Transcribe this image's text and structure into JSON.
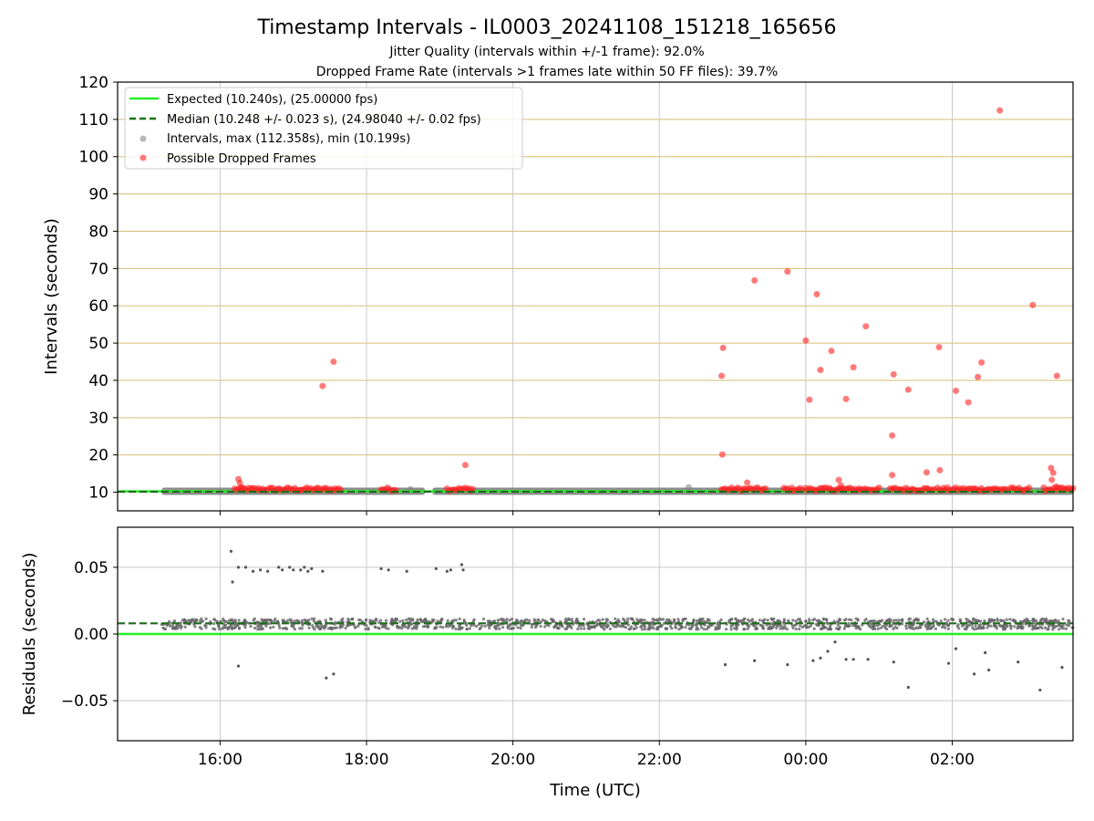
{
  "chart_data": {
    "title": "Timestamp Intervals - IL0003_20241108_151218_165656",
    "subtitle_1": "Jitter Quality (intervals within +/-1 frame): 92.0%",
    "subtitle_2": "Dropped Frame Rate (intervals >1 frames late within 50 FF files): 39.7%",
    "xlabel": "Time (UTC)",
    "x_ticks": [
      "16:00",
      "18:00",
      "20:00",
      "22:00",
      "00:00",
      "02:00"
    ],
    "x_tick_hours": [
      16,
      18,
      20,
      22,
      24,
      26
    ],
    "x_range_hours": [
      14.6,
      27.65
    ],
    "panels": [
      {
        "id": "intervals",
        "type": "scatter",
        "ylabel": "Intervals (seconds)",
        "ylim": [
          5,
          120
        ],
        "y_ticks": [
          10,
          20,
          30,
          40,
          50,
          60,
          70,
          80,
          90,
          100,
          110,
          120
        ],
        "grid": "x-gray, y-goldenrod",
        "legend_position": "top-left",
        "expected_interval_s": 10.24,
        "median_interval_s": 10.248,
        "legend": [
          "Expected (10.240s), (25.00000 fps)",
          "Median (10.248 +/- 0.023 s), (24.98040 +/- 0.02 fps)",
          "Intervals, max (112.358s), min (10.199s)",
          "Possible Dropped Frames"
        ],
        "normal_band_ranges_hours": [
          [
            15.2,
            18.8
          ],
          [
            18.9,
            27.65
          ]
        ],
        "normal_outliers": [
          [
            17.3,
            10.7
          ],
          [
            18.6,
            10.8
          ],
          [
            22.4,
            11.3
          ]
        ],
        "dropped_dense_ranges_hours": [
          [
            16.2,
            17.65
          ],
          [
            18.2,
            18.4
          ],
          [
            19.1,
            19.45
          ],
          [
            22.85,
            23.45
          ],
          [
            23.7,
            23.95
          ],
          [
            24.0,
            25.0
          ],
          [
            25.15,
            25.75
          ],
          [
            25.8,
            26.75
          ],
          [
            26.8,
            27.05
          ],
          [
            27.25,
            27.65
          ]
        ],
        "dropped_points": [
          [
            16.25,
            13.5
          ],
          [
            16.27,
            12.5
          ],
          [
            16.3,
            11.2
          ],
          [
            17.4,
            38.5
          ],
          [
            17.55,
            45.0
          ],
          [
            19.35,
            17.3
          ],
          [
            22.85,
            41.2
          ],
          [
            22.87,
            48.7
          ],
          [
            22.86,
            20.1
          ],
          [
            23.2,
            12.6
          ],
          [
            23.3,
            66.8
          ],
          [
            23.75,
            69.2
          ],
          [
            24.0,
            50.7
          ],
          [
            24.05,
            34.8
          ],
          [
            24.15,
            63.1
          ],
          [
            24.2,
            42.8
          ],
          [
            24.35,
            47.9
          ],
          [
            24.45,
            13.3
          ],
          [
            24.48,
            11.8
          ],
          [
            24.55,
            35.0
          ],
          [
            24.65,
            43.5
          ],
          [
            24.82,
            54.5
          ],
          [
            25.2,
            41.6
          ],
          [
            25.18,
            25.2
          ],
          [
            25.18,
            14.6
          ],
          [
            25.4,
            37.5
          ],
          [
            25.65,
            15.3
          ],
          [
            25.82,
            48.9
          ],
          [
            25.83,
            15.9
          ],
          [
            26.05,
            37.2
          ],
          [
            26.22,
            34.1
          ],
          [
            26.35,
            40.9
          ],
          [
            26.4,
            44.8
          ],
          [
            26.65,
            112.4
          ],
          [
            27.1,
            60.2
          ],
          [
            27.35,
            16.5
          ],
          [
            27.36,
            13.3
          ],
          [
            27.38,
            15.2
          ],
          [
            27.43,
            41.2
          ],
          [
            27.42,
            11.5
          ]
        ]
      },
      {
        "id": "residuals",
        "type": "scatter",
        "ylabel": "Residuals (seconds)",
        "ylim": [
          -0.08,
          0.08
        ],
        "y_ticks": [
          0.05,
          0.0,
          -0.05
        ],
        "y_tick_labels": [
          "0.05",
          "0.00",
          "−0.05"
        ],
        "grid": "x-gray, y-gray",
        "expected_residual_s": 0.0,
        "median_residual_s": 0.008,
        "band_center_s": 0.0075,
        "band_halfwidth_s": 0.004,
        "outliers": [
          [
            16.15,
            0.062
          ],
          [
            16.17,
            0.039
          ],
          [
            16.25,
            0.05
          ],
          [
            16.35,
            0.05
          ],
          [
            16.45,
            0.047
          ],
          [
            16.55,
            0.048
          ],
          [
            16.65,
            0.047
          ],
          [
            16.8,
            0.05
          ],
          [
            16.85,
            0.048
          ],
          [
            16.95,
            0.05
          ],
          [
            17.0,
            0.048
          ],
          [
            17.1,
            0.048
          ],
          [
            17.15,
            0.05
          ],
          [
            17.2,
            0.047
          ],
          [
            17.25,
            0.049
          ],
          [
            17.4,
            0.047
          ],
          [
            18.2,
            0.049
          ],
          [
            18.3,
            0.048
          ],
          [
            18.55,
            0.047
          ],
          [
            18.95,
            0.049
          ],
          [
            19.1,
            0.047
          ],
          [
            19.15,
            0.048
          ],
          [
            19.3,
            0.052
          ],
          [
            19.32,
            0.048
          ],
          [
            16.25,
            -0.024
          ],
          [
            17.45,
            -0.033
          ],
          [
            17.55,
            -0.03
          ],
          [
            22.9,
            -0.023
          ],
          [
            23.3,
            -0.02
          ],
          [
            23.75,
            -0.023
          ],
          [
            24.1,
            -0.02
          ],
          [
            24.2,
            -0.018
          ],
          [
            24.3,
            -0.013
          ],
          [
            24.4,
            -0.006
          ],
          [
            24.55,
            -0.019
          ],
          [
            24.65,
            -0.019
          ],
          [
            24.85,
            -0.019
          ],
          [
            25.2,
            -0.021
          ],
          [
            25.4,
            -0.04
          ],
          [
            25.95,
            -0.022
          ],
          [
            26.05,
            -0.011
          ],
          [
            26.3,
            -0.03
          ],
          [
            26.45,
            -0.014
          ],
          [
            26.5,
            -0.027
          ],
          [
            26.9,
            -0.021
          ],
          [
            27.2,
            -0.042
          ],
          [
            27.5,
            -0.025
          ]
        ]
      }
    ]
  }
}
